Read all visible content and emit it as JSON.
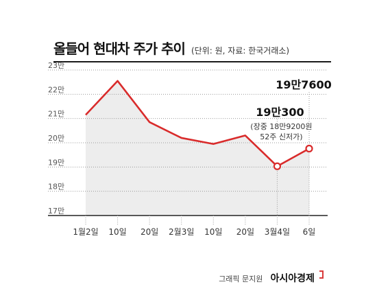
{
  "title": "올들어 현대차 주가 추이",
  "unit_note": "(단위: 원, 자료: 한국거래소)",
  "credit": "그래픽 문지원",
  "brand": "아시아경제",
  "colors": {
    "line": "#d92b2b",
    "area": "#ededed",
    "grid": "#9a9a9a",
    "axis": "#222222"
  },
  "chart_data": {
    "type": "area",
    "x": [
      "1월2일",
      "10일",
      "20일",
      "2월3일",
      "10일",
      "20일",
      "3월4일",
      "6일"
    ],
    "y_tick_labels": [
      "23만",
      "22만",
      "21만",
      "20만",
      "19만",
      "18만",
      "17만"
    ],
    "y_ticks": [
      230000,
      220000,
      210000,
      200000,
      190000,
      180000,
      170000
    ],
    "ylim": [
      170000,
      230000
    ],
    "series": [
      {
        "values": [
          211500,
          225500,
          208500,
          202000,
          199500,
          203000,
          190300,
          197600
        ]
      }
    ],
    "grid": true,
    "annotations": [
      {
        "point_index": 6,
        "label": "19만300",
        "note_lines": [
          "(장중 18만9200원",
          "52주 신저가)"
        ]
      },
      {
        "point_index": 7,
        "label": "19만7600"
      }
    ]
  }
}
